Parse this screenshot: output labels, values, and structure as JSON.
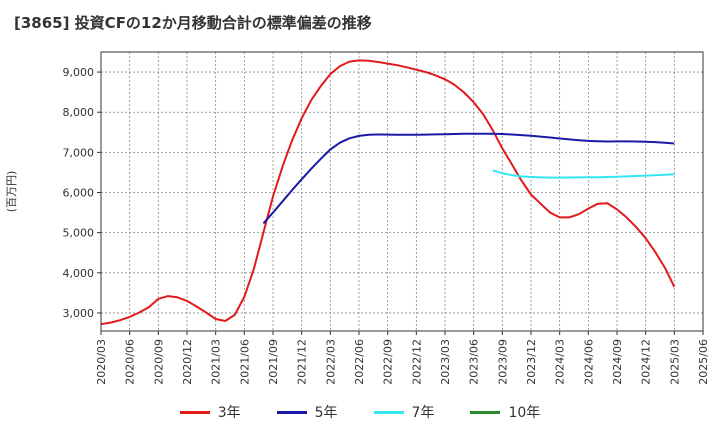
{
  "chart_data": {
    "type": "line",
    "title": "[3865]  投資CFの12か月移動合計の標準偏差の推移",
    "ylabel": "(百万円)",
    "xlabel": "",
    "ylim": [
      2550,
      9500
    ],
    "y_ticks": [
      3000,
      4000,
      5000,
      6000,
      7000,
      8000,
      9000
    ],
    "y_tick_labels": [
      "3,000",
      "4,000",
      "5,000",
      "6,000",
      "7,000",
      "8,000",
      "9,000"
    ],
    "x_tick_labels": [
      "2020/03",
      "2020/06",
      "2020/09",
      "2020/12",
      "2021/03",
      "2021/06",
      "2021/09",
      "2021/12",
      "2022/03",
      "2022/06",
      "2022/09",
      "2022/12",
      "2023/03",
      "2023/06",
      "2023/09",
      "2023/12",
      "2024/03",
      "2024/06",
      "2024/09",
      "2024/12",
      "2025/03",
      "2025/06"
    ],
    "grid": true,
    "legend_position": "bottom",
    "series": [
      {
        "name": "3年",
        "color": "#e31a1c",
        "points": [
          [
            "2020/03",
            2720
          ],
          [
            "2020/04",
            2760
          ],
          [
            "2020/05",
            2820
          ],
          [
            "2020/06",
            2900
          ],
          [
            "2020/07",
            3010
          ],
          [
            "2020/08",
            3140
          ],
          [
            "2020/09",
            3350
          ],
          [
            "2020/10",
            3420
          ],
          [
            "2020/11",
            3390
          ],
          [
            "2020/12",
            3300
          ],
          [
            "2021/01",
            3160
          ],
          [
            "2021/02",
            3010
          ],
          [
            "2021/03",
            2850
          ],
          [
            "2021/04",
            2800
          ],
          [
            "2021/05",
            2950
          ],
          [
            "2021/06",
            3400
          ],
          [
            "2021/07",
            4100
          ],
          [
            "2021/08",
            5000
          ],
          [
            "2021/09",
            5900
          ],
          [
            "2021/10",
            6650
          ],
          [
            "2021/11",
            7300
          ],
          [
            "2021/12",
            7850
          ],
          [
            "2022/01",
            8300
          ],
          [
            "2022/02",
            8650
          ],
          [
            "2022/03",
            8950
          ],
          [
            "2022/04",
            9150
          ],
          [
            "2022/05",
            9260
          ],
          [
            "2022/06",
            9290
          ],
          [
            "2022/07",
            9280
          ],
          [
            "2022/08",
            9250
          ],
          [
            "2022/09",
            9210
          ],
          [
            "2022/10",
            9170
          ],
          [
            "2022/11",
            9120
          ],
          [
            "2022/12",
            9060
          ],
          [
            "2023/01",
            9000
          ],
          [
            "2023/02",
            8920
          ],
          [
            "2023/03",
            8820
          ],
          [
            "2023/04",
            8680
          ],
          [
            "2023/05",
            8490
          ],
          [
            "2023/06",
            8250
          ],
          [
            "2023/07",
            7950
          ],
          [
            "2023/08",
            7550
          ],
          [
            "2023/09",
            7100
          ],
          [
            "2023/10",
            6700
          ],
          [
            "2023/11",
            6300
          ],
          [
            "2023/12",
            5950
          ],
          [
            "2024/01",
            5720
          ],
          [
            "2024/02",
            5500
          ],
          [
            "2024/03",
            5380
          ],
          [
            "2024/04",
            5380
          ],
          [
            "2024/05",
            5460
          ],
          [
            "2024/06",
            5600
          ],
          [
            "2024/07",
            5720
          ],
          [
            "2024/08",
            5730
          ],
          [
            "2024/09",
            5580
          ],
          [
            "2024/10",
            5380
          ],
          [
            "2024/11",
            5140
          ],
          [
            "2024/12",
            4860
          ],
          [
            "2025/01",
            4520
          ],
          [
            "2025/02",
            4130
          ],
          [
            "2025/03",
            3650
          ]
        ]
      },
      {
        "name": "5年",
        "color": "#1a1aa6",
        "points": [
          [
            "2021/08",
            5230
          ],
          [
            "2021/09",
            5500
          ],
          [
            "2021/10",
            5780
          ],
          [
            "2021/11",
            6060
          ],
          [
            "2021/12",
            6330
          ],
          [
            "2022/01",
            6590
          ],
          [
            "2022/02",
            6840
          ],
          [
            "2022/03",
            7070
          ],
          [
            "2022/04",
            7240
          ],
          [
            "2022/05",
            7350
          ],
          [
            "2022/06",
            7410
          ],
          [
            "2022/07",
            7440
          ],
          [
            "2022/08",
            7445
          ],
          [
            "2022/09",
            7442
          ],
          [
            "2022/10",
            7440
          ],
          [
            "2022/11",
            7440
          ],
          [
            "2022/12",
            7440
          ],
          [
            "2023/01",
            7442
          ],
          [
            "2023/02",
            7447
          ],
          [
            "2023/03",
            7452
          ],
          [
            "2023/04",
            7458
          ],
          [
            "2023/05",
            7462
          ],
          [
            "2023/06",
            7465
          ],
          [
            "2023/07",
            7466
          ],
          [
            "2023/08",
            7465
          ],
          [
            "2023/09",
            7458
          ],
          [
            "2023/10",
            7445
          ],
          [
            "2023/11",
            7430
          ],
          [
            "2023/12",
            7412
          ],
          [
            "2024/01",
            7392
          ],
          [
            "2024/02",
            7370
          ],
          [
            "2024/03",
            7345
          ],
          [
            "2024/04",
            7322
          ],
          [
            "2024/05",
            7300
          ],
          [
            "2024/06",
            7285
          ],
          [
            "2024/07",
            7275
          ],
          [
            "2024/08",
            7270
          ],
          [
            "2024/09",
            7272
          ],
          [
            "2024/10",
            7272
          ],
          [
            "2024/11",
            7270
          ],
          [
            "2024/12",
            7264
          ],
          [
            "2025/01",
            7255
          ],
          [
            "2025/02",
            7240
          ],
          [
            "2025/03",
            7220
          ]
        ]
      },
      {
        "name": "7年",
        "color": "#33e6f2",
        "points": [
          [
            "2023/08",
            6550
          ],
          [
            "2023/09",
            6480
          ],
          [
            "2023/10",
            6430
          ],
          [
            "2023/11",
            6400
          ],
          [
            "2023/12",
            6385
          ],
          [
            "2024/01",
            6375
          ],
          [
            "2024/02",
            6372
          ],
          [
            "2024/03",
            6372
          ],
          [
            "2024/04",
            6374
          ],
          [
            "2024/05",
            6376
          ],
          [
            "2024/06",
            6379
          ],
          [
            "2024/07",
            6382
          ],
          [
            "2024/08",
            6386
          ],
          [
            "2024/09",
            6392
          ],
          [
            "2024/10",
            6400
          ],
          [
            "2024/11",
            6410
          ],
          [
            "2024/12",
            6420
          ],
          [
            "2025/01",
            6430
          ],
          [
            "2025/02",
            6440
          ],
          [
            "2025/03",
            6455
          ]
        ]
      },
      {
        "name": "10年",
        "color": "#2a8a2a",
        "points": []
      }
    ]
  }
}
